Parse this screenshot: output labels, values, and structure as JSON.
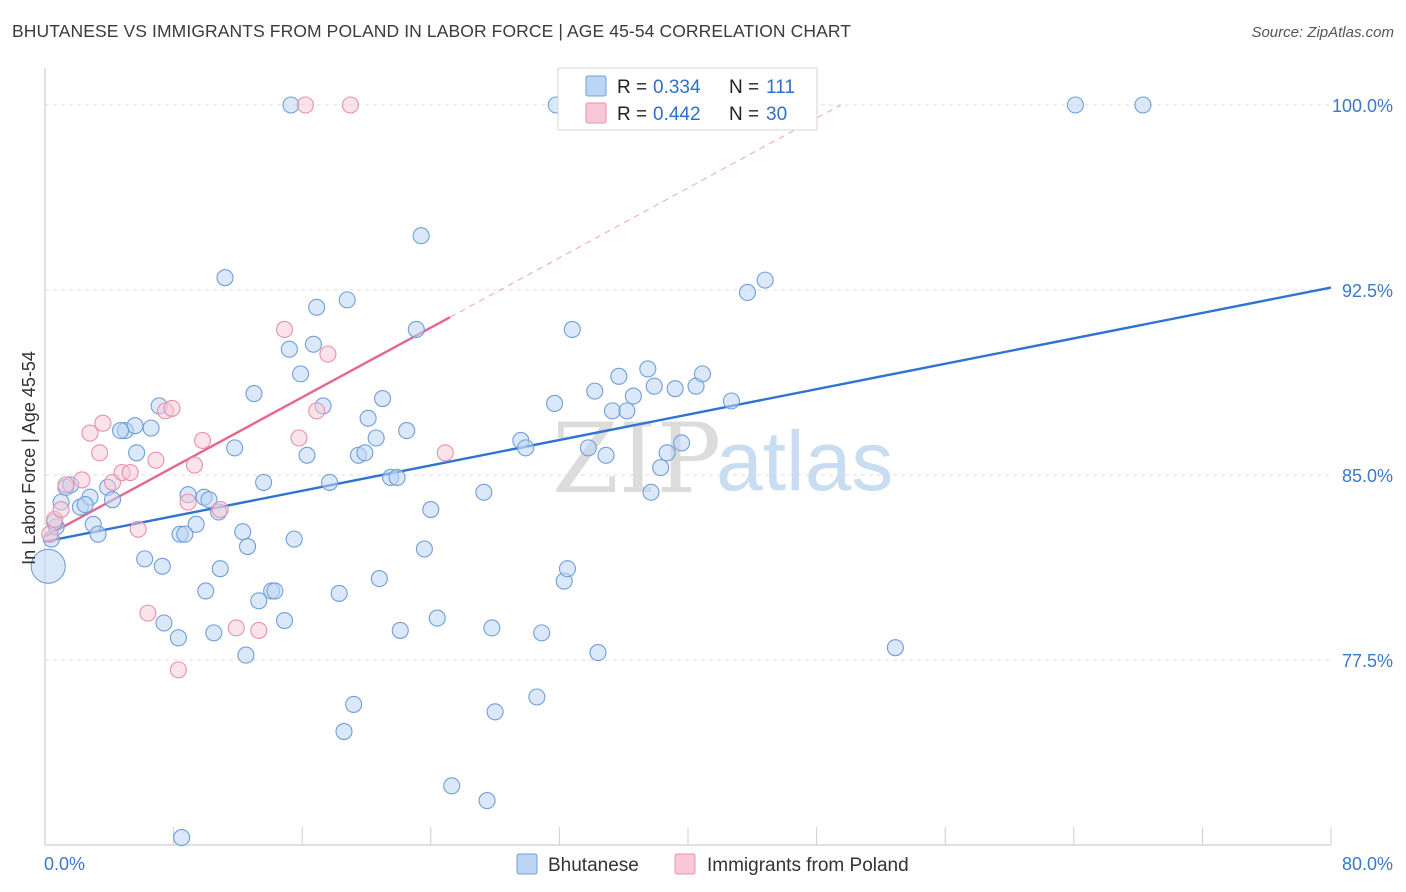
{
  "header": {
    "title": "BHUTANESE VS IMMIGRANTS FROM POLAND IN LABOR FORCE | AGE 45-54 CORRELATION CHART",
    "source": "Source: ZipAtlas.com"
  },
  "watermark": {
    "part1": "ZIP",
    "part2": "atlas"
  },
  "legend": {
    "items": [
      {
        "r_label": "R =",
        "r_value": "0.334",
        "n_label": "N =",
        "n_value": "111"
      },
      {
        "r_label": "R =",
        "r_value": "0.442",
        "n_label": "N =",
        "n_value": "30"
      }
    ]
  },
  "bottom_legend": [
    "Bhutanese",
    "Immigrants from Poland"
  ],
  "colors": {
    "bhutanese_fill": "#bcd5f4",
    "bhutanese_stroke": "#6f9fd8",
    "bhutanese_line": "#2f74d0",
    "poland_fill": "#f8c8d6",
    "poland_stroke": "#e98fae",
    "poland_line": "#e4678f",
    "grid": "#dddddd",
    "tick_text": "#3a78c9"
  },
  "chart_data": {
    "type": "scatter",
    "title": "BHUTANESE VS IMMIGRANTS FROM POLAND IN LABOR FORCE | AGE 45-54 CORRELATION CHART",
    "ylabel": "In Labor Force | Age 45-54",
    "xlabel": "",
    "xlim": [
      0,
      80
    ],
    "ylim": [
      70.0,
      101.5
    ],
    "x_ticks": [
      "0.0%",
      "80.0%"
    ],
    "y_ticks": [
      {
        "value": 100.0,
        "label": "100.0%"
      },
      {
        "value": 92.5,
        "label": "92.5%"
      },
      {
        "value": 85.0,
        "label": "85.0%"
      },
      {
        "value": 77.5,
        "label": "77.5%"
      }
    ],
    "legend_position": "top-center",
    "grid": true,
    "series": [
      {
        "name": "Bhutanese",
        "trend": {
          "x": [
            0,
            80
          ],
          "y": [
            82.3,
            92.6
          ]
        },
        "points": [
          [
            0.2,
            81.3
          ],
          [
            0.4,
            82.4
          ],
          [
            0.7,
            82.9
          ],
          [
            1.0,
            83.9
          ],
          [
            1.3,
            84.5
          ],
          [
            1.6,
            84.6
          ],
          [
            2.2,
            83.7
          ],
          [
            2.8,
            84.1
          ],
          [
            3.0,
            83.0
          ],
          [
            3.3,
            82.6
          ],
          [
            3.9,
            84.5
          ],
          [
            4.2,
            84.0
          ],
          [
            5.0,
            86.8
          ],
          [
            5.7,
            85.9
          ],
          [
            5.6,
            87.0
          ],
          [
            6.6,
            86.9
          ],
          [
            7.1,
            87.8
          ],
          [
            6.2,
            81.6
          ],
          [
            7.3,
            81.3
          ],
          [
            7.4,
            79.0
          ],
          [
            8.3,
            78.4
          ],
          [
            8.4,
            82.6
          ],
          [
            9.4,
            83.0
          ],
          [
            8.9,
            84.2
          ],
          [
            8.7,
            82.6
          ],
          [
            9.9,
            84.1
          ],
          [
            10.2,
            84.0
          ],
          [
            10.8,
            83.5
          ],
          [
            10.5,
            78.6
          ],
          [
            10.9,
            81.2
          ],
          [
            11.2,
            93.0
          ],
          [
            11.8,
            86.1
          ],
          [
            12.3,
            82.7
          ],
          [
            12.6,
            82.1
          ],
          [
            12.5,
            77.7
          ],
          [
            13.0,
            88.3
          ],
          [
            13.3,
            79.9
          ],
          [
            13.6,
            84.7
          ],
          [
            14.1,
            80.3
          ],
          [
            14.3,
            80.3
          ],
          [
            14.9,
            79.1
          ],
          [
            15.2,
            90.1
          ],
          [
            15.3,
            100.0
          ],
          [
            15.5,
            82.4
          ],
          [
            15.9,
            89.1
          ],
          [
            16.3,
            85.8
          ],
          [
            16.7,
            90.3
          ],
          [
            16.9,
            91.8
          ],
          [
            17.3,
            87.8
          ],
          [
            17.7,
            84.7
          ],
          [
            18.3,
            80.2
          ],
          [
            18.6,
            74.6
          ],
          [
            18.8,
            92.1
          ],
          [
            19.2,
            75.7
          ],
          [
            19.5,
            85.8
          ],
          [
            19.9,
            85.9
          ],
          [
            20.1,
            87.3
          ],
          [
            20.6,
            86.5
          ],
          [
            20.8,
            80.8
          ],
          [
            21.0,
            88.1
          ],
          [
            21.5,
            84.9
          ],
          [
            21.9,
            84.9
          ],
          [
            22.1,
            78.7
          ],
          [
            22.5,
            86.8
          ],
          [
            23.1,
            90.9
          ],
          [
            23.4,
            94.7
          ],
          [
            23.6,
            82.0
          ],
          [
            24.0,
            83.6
          ],
          [
            24.4,
            79.2
          ],
          [
            25.3,
            72.4
          ],
          [
            27.3,
            84.3
          ],
          [
            27.5,
            71.8
          ],
          [
            27.8,
            78.8
          ],
          [
            28.0,
            75.4
          ],
          [
            29.6,
            86.4
          ],
          [
            29.9,
            86.1
          ],
          [
            30.6,
            76.0
          ],
          [
            30.9,
            78.6
          ],
          [
            31.7,
            87.9
          ],
          [
            31.8,
            100.0
          ],
          [
            32.3,
            80.7
          ],
          [
            32.5,
            81.2
          ],
          [
            32.8,
            90.9
          ],
          [
            33.8,
            86.1
          ],
          [
            34.2,
            88.4
          ],
          [
            34.4,
            77.8
          ],
          [
            34.9,
            85.8
          ],
          [
            35.3,
            87.6
          ],
          [
            35.7,
            89.0
          ],
          [
            36.2,
            87.6
          ],
          [
            36.6,
            88.2
          ],
          [
            37.5,
            89.3
          ],
          [
            37.7,
            84.3
          ],
          [
            37.9,
            88.6
          ],
          [
            38.3,
            85.3
          ],
          [
            38.7,
            85.9
          ],
          [
            39.2,
            88.5
          ],
          [
            39.6,
            86.3
          ],
          [
            40.5,
            88.6
          ],
          [
            40.9,
            89.1
          ],
          [
            42.7,
            88.0
          ],
          [
            43.7,
            92.4
          ],
          [
            44.8,
            92.9
          ],
          [
            52.9,
            78.0
          ],
          [
            64.1,
            100.0
          ],
          [
            68.3,
            100.0
          ],
          [
            8.5,
            70.3
          ],
          [
            0.6,
            83.1
          ],
          [
            2.5,
            83.8
          ],
          [
            4.7,
            86.8
          ],
          [
            10.0,
            80.3
          ]
        ]
      },
      {
        "name": "Immigrants from Poland",
        "trend": {
          "x": [
            0,
            25.2
          ],
          "y": [
            82.5,
            91.4
          ],
          "extension_to": [
            49.5,
            100.0
          ]
        },
        "points": [
          [
            0.3,
            82.6
          ],
          [
            0.6,
            83.2
          ],
          [
            1.0,
            83.6
          ],
          [
            1.3,
            84.6
          ],
          [
            2.3,
            84.8
          ],
          [
            2.8,
            86.7
          ],
          [
            3.4,
            85.9
          ],
          [
            3.6,
            87.1
          ],
          [
            4.2,
            84.7
          ],
          [
            4.8,
            85.1
          ],
          [
            5.3,
            85.1
          ],
          [
            5.8,
            82.8
          ],
          [
            6.4,
            79.4
          ],
          [
            6.9,
            85.6
          ],
          [
            7.5,
            87.6
          ],
          [
            7.9,
            87.7
          ],
          [
            8.3,
            77.1
          ],
          [
            8.9,
            83.9
          ],
          [
            9.3,
            85.4
          ],
          [
            9.8,
            86.4
          ],
          [
            10.9,
            83.6
          ],
          [
            11.9,
            78.8
          ],
          [
            13.3,
            78.7
          ],
          [
            14.9,
            90.9
          ],
          [
            15.8,
            86.5
          ],
          [
            16.2,
            100.0
          ],
          [
            16.9,
            87.6
          ],
          [
            17.6,
            89.9
          ],
          [
            19.0,
            100.0
          ],
          [
            24.9,
            85.9
          ]
        ]
      }
    ]
  }
}
